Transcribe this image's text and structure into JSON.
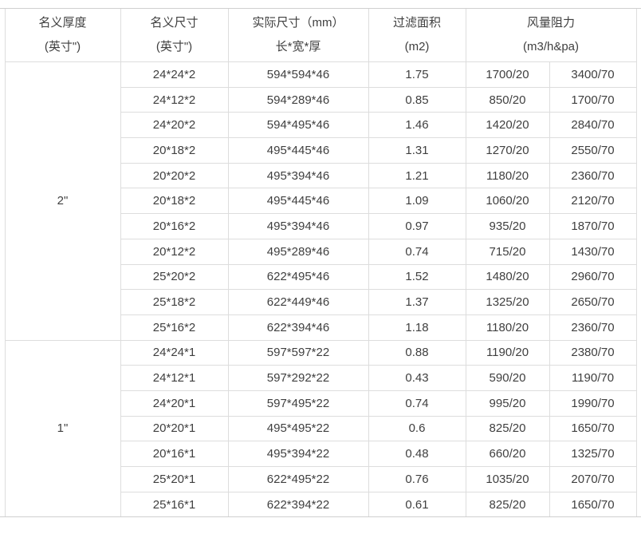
{
  "colors": {
    "background": "#ffffff",
    "inner_border": "#dddddd",
    "outer_rule": "#cfcfcf",
    "text": "#3f3f3f"
  },
  "table": {
    "header": [
      {
        "line1": "名义厚度",
        "line2": "(英寸\")"
      },
      {
        "line1": "名义尺寸",
        "line2": "(英寸\")"
      },
      {
        "line1": "实际尺寸（mm）",
        "line2": "长*宽*厚"
      },
      {
        "line1": "过滤面积",
        "line2": "(m2)"
      },
      {
        "line1": "风量阻力",
        "line2": "(m3/h&pa)"
      }
    ],
    "groups": [
      {
        "thickness": "2\"",
        "rows": [
          [
            "24*24*2",
            "594*594*46",
            "1.75",
            "1700/20",
            "3400/70"
          ],
          [
            "24*12*2",
            "594*289*46",
            "0.85",
            "850/20",
            "1700/70"
          ],
          [
            "24*20*2",
            "594*495*46",
            "1.46",
            "1420/20",
            "2840/70"
          ],
          [
            "20*18*2",
            "495*445*46",
            "1.31",
            "1270/20",
            "2550/70"
          ],
          [
            "20*20*2",
            "495*394*46",
            "1.21",
            "1180/20",
            "2360/70"
          ],
          [
            "20*18*2",
            "495*445*46",
            "1.09",
            "1060/20",
            "2120/70"
          ],
          [
            "20*16*2",
            "495*394*46",
            "0.97",
            "935/20",
            "1870/70"
          ],
          [
            "20*12*2",
            "495*289*46",
            "0.74",
            "715/20",
            "1430/70"
          ],
          [
            "25*20*2",
            "622*495*46",
            "1.52",
            "1480/20",
            "2960/70"
          ],
          [
            "25*18*2",
            "622*449*46",
            "1.37",
            "1325/20",
            "2650/70"
          ],
          [
            "25*16*2",
            "622*394*46",
            "1.18",
            "1180/20",
            "2360/70"
          ]
        ]
      },
      {
        "thickness": "1\"",
        "rows": [
          [
            "24*24*1",
            "597*597*22",
            "0.88",
            "1190/20",
            "2380/70"
          ],
          [
            "24*12*1",
            "597*292*22",
            "0.43",
            "590/20",
            "1190/70"
          ],
          [
            "24*20*1",
            "597*495*22",
            "0.74",
            "995/20",
            "1990/70"
          ],
          [
            "20*20*1",
            "495*495*22",
            "0.6",
            "825/20",
            "1650/70"
          ],
          [
            "20*16*1",
            "495*394*22",
            "0.48",
            "660/20",
            "1325/70"
          ],
          [
            "25*20*1",
            "622*495*22",
            "0.76",
            "1035/20",
            "2070/70"
          ],
          [
            "25*16*1",
            "622*394*22",
            "0.61",
            "825/20",
            "1650/70"
          ]
        ]
      }
    ]
  }
}
